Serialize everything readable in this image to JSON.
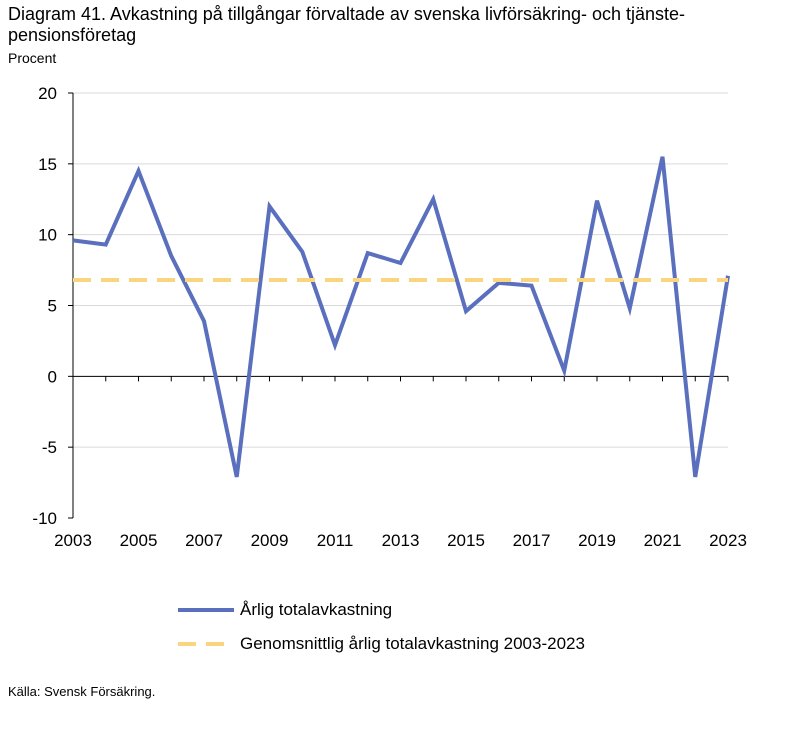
{
  "title": "Diagram 41. Avkastning på tillgångar förvaltade av svenska livförsäkring- och tjänste-pensionsföretag",
  "title_line1": "Diagram 41. Avkastning på tillgångar förvaltade av svenska livförsäkring- och tjänste-",
  "title_line2": "pensionsföretag",
  "source": "Källa: Svensk Försäkring.",
  "chart_data": {
    "type": "line",
    "title": "Diagram 41. Avkastning på tillgångar förvaltade av svenska livförsäkring- och tjänste-pensionsföretag",
    "ylabel": "Procent",
    "xlabel": "",
    "ylim": [
      -10,
      20
    ],
    "yticks": [
      20,
      15,
      10,
      5,
      0,
      -5,
      -10
    ],
    "x": [
      2003,
      2004,
      2005,
      2006,
      2007,
      2008,
      2009,
      2010,
      2011,
      2012,
      2013,
      2014,
      2015,
      2016,
      2017,
      2018,
      2019,
      2020,
      2021,
      2022,
      2023
    ],
    "xtick_labels": [
      "2003",
      "2005",
      "2007",
      "2009",
      "2011",
      "2013",
      "2015",
      "2017",
      "2019",
      "2021",
      "2023"
    ],
    "series": [
      {
        "name": "Årlig totalavkastning",
        "color": "#5a6fbd",
        "style": "solid",
        "values": [
          9.6,
          9.3,
          14.5,
          8.5,
          3.9,
          -7.1,
          12.0,
          8.8,
          2.2,
          8.7,
          8.0,
          12.5,
          4.6,
          6.6,
          6.4,
          0.4,
          12.4,
          4.8,
          15.5,
          -7.1,
          7.1
        ]
      },
      {
        "name": "Genomsnittlig årlig totalavkastning 2003-2023",
        "color": "#f9d57f",
        "style": "dashed",
        "values": [
          6.8,
          6.8,
          6.8,
          6.8,
          6.8,
          6.8,
          6.8,
          6.8,
          6.8,
          6.8,
          6.8,
          6.8,
          6.8,
          6.8,
          6.8,
          6.8,
          6.8,
          6.8,
          6.8,
          6.8,
          6.8
        ]
      }
    ],
    "grid": "horizontal",
    "legend_position": "bottom"
  }
}
